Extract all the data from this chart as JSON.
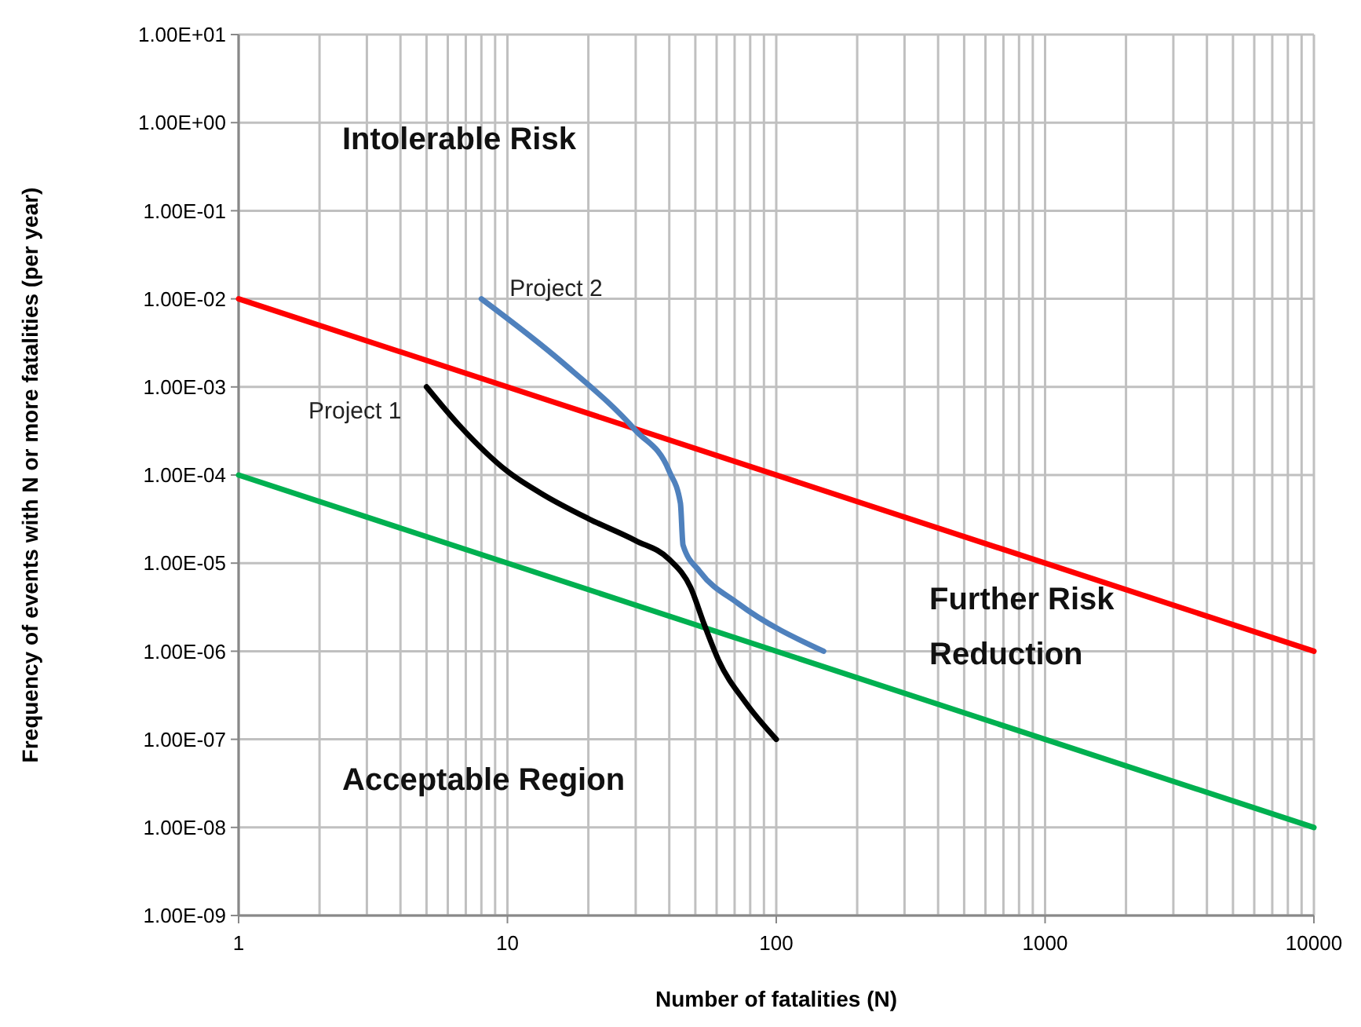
{
  "chart_data": {
    "type": "line",
    "xlabel": "Number of fatalities (N)",
    "ylabel": "Frequency of events with N or more fatalities (per year)",
    "log": "xy",
    "grid": true,
    "legend": false,
    "marker": "none",
    "line_style": "solid",
    "xlim": [
      1,
      10000
    ],
    "ylim": [
      1e-09,
      10
    ],
    "xticks": [
      1,
      {
        "value": 2,
        "label": null
      },
      {
        "value": 3,
        "label": null
      },
      {
        "value": 4,
        "label": null
      },
      {
        "value": 5,
        "label": null
      },
      {
        "value": 6,
        "label": null
      },
      {
        "value": 7,
        "label": null
      },
      {
        "value": 8,
        "label": null
      },
      {
        "value": 9,
        "label": null
      },
      10,
      {
        "value": 20,
        "label": null
      },
      {
        "value": 30,
        "label": null
      },
      {
        "value": 40,
        "label": null
      },
      {
        "value": 50,
        "label": null
      },
      {
        "value": 60,
        "label": null
      },
      {
        "value": 70,
        "label": null
      },
      {
        "value": 80,
        "label": null
      },
      {
        "value": 90,
        "label": null
      },
      100,
      {
        "value": 200,
        "label": null
      },
      {
        "value": 300,
        "label": null
      },
      {
        "value": 400,
        "label": null
      },
      {
        "value": 500,
        "label": null
      },
      {
        "value": 600,
        "label": null
      },
      {
        "value": 700,
        "label": null
      },
      {
        "value": 800,
        "label": null
      },
      {
        "value": 900,
        "label": null
      },
      1000,
      {
        "value": 2000,
        "label": null
      },
      {
        "value": 3000,
        "label": null
      },
      {
        "value": 4000,
        "label": null
      },
      {
        "value": 5000,
        "label": null
      },
      {
        "value": 6000,
        "label": null
      },
      {
        "value": 7000,
        "label": null
      },
      {
        "value": 8000,
        "label": null
      },
      {
        "value": 9000,
        "label": null
      },
      10000
    ],
    "yticks": [
      {
        "value": 1e-09,
        "label": "1.00E-09"
      },
      {
        "value": 1e-08,
        "label": "1.00E-08"
      },
      {
        "value": 1e-07,
        "label": "1.00E-07"
      },
      {
        "value": 1e-06,
        "label": "1.00E-06"
      },
      {
        "value": 1e-05,
        "label": "1.00E-05"
      },
      {
        "value": 0.0001,
        "label": "1.00E-04"
      },
      {
        "value": 0.001,
        "label": "1.00E-03"
      },
      {
        "value": 0.01,
        "label": "1.00E-02"
      },
      {
        "value": 0.1,
        "label": "1.00E-01"
      },
      {
        "value": 1,
        "label": "1.00E+00"
      },
      {
        "value": 10,
        "label": "1.00E+01"
      }
    ],
    "annotations": [
      "Intolerable Risk",
      "Further Risk Reduction",
      "Acceptable Region"
    ],
    "series": [
      {
        "color": "#ff0000",
        "x": [
          1,
          10000
        ],
        "values": [
          0.01,
          1e-06
        ]
      },
      {
        "color": "#00b050",
        "x": [
          1,
          10000
        ],
        "values": [
          0.0001,
          1e-08
        ]
      },
      {
        "name": "Project 2",
        "color": "#4f81bd",
        "x": [
          8,
          16,
          30,
          40,
          44,
          45,
          52,
          72,
          150
        ],
        "values": [
          0.01,
          0.0019,
          0.00032,
          0.00011,
          4.8e-05,
          1.6e-05,
          8e-06,
          3.5e-06,
          1e-06
        ]
      },
      {
        "name": "Project 1",
        "color": "#000000",
        "x": [
          5,
          6.6,
          10,
          13.7,
          20,
          30,
          40,
          48,
          54,
          61,
          77,
          100
        ],
        "values": [
          0.001,
          0.00037,
          0.00011,
          5.9e-05,
          3.2e-05,
          1.8e-05,
          1.1e-05,
          5.3e-06,
          2e-06,
          7.9e-07,
          2.6e-07,
          1e-07
        ]
      }
    ]
  }
}
